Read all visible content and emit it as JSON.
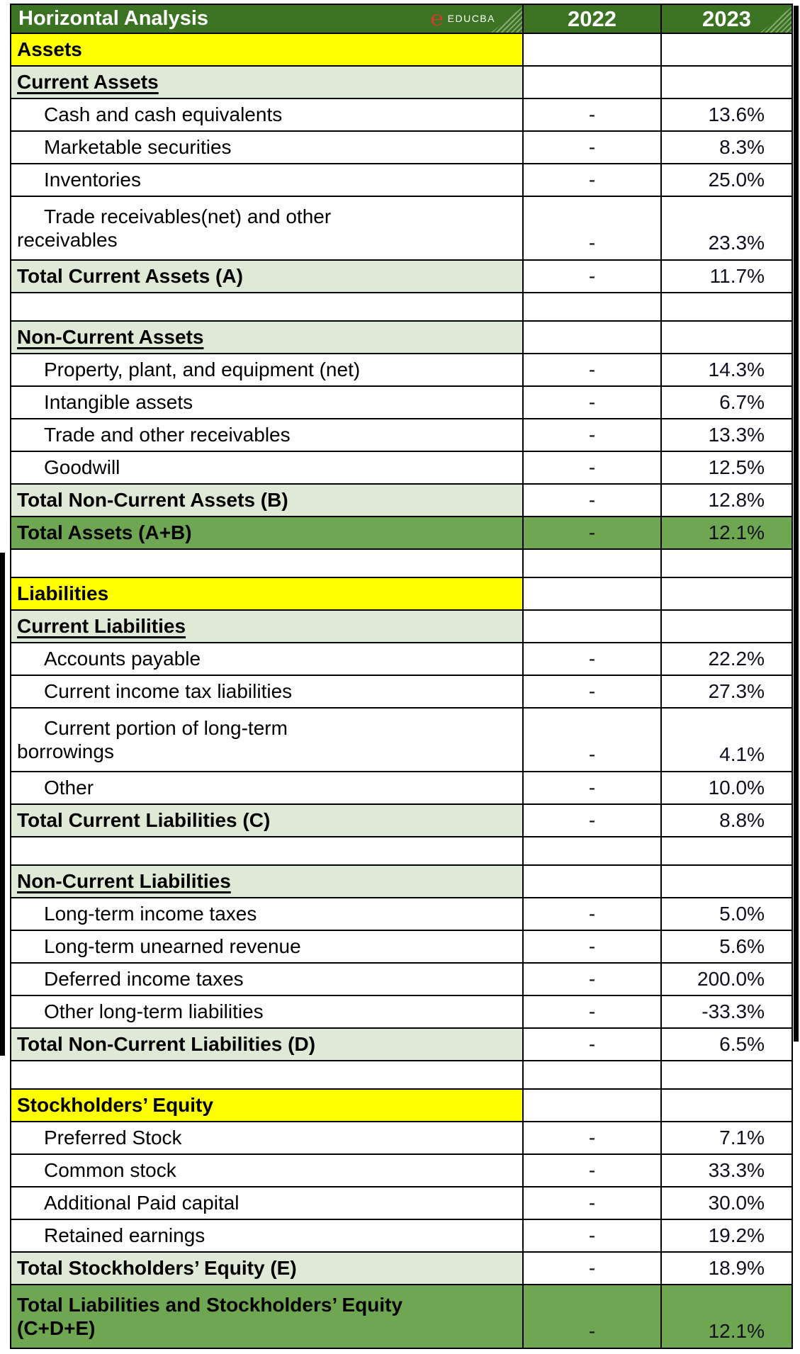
{
  "header": {
    "title": "Horizontal Analysis",
    "logo_text": "EDUCBA",
    "col_2022": "2022",
    "col_2023": "2023"
  },
  "colors": {
    "header_green": "#3b7322",
    "light_green": "#deead5",
    "mid_green": "#6fa651",
    "yellow": "#ffff00",
    "logo_red": "#e8332a"
  },
  "rows": [
    {
      "type": "section_yellow",
      "label": "Assets",
      "y2022": "",
      "y2023": ""
    },
    {
      "type": "section_green",
      "label": "Current Assets",
      "y2022": "",
      "y2023": ""
    },
    {
      "type": "item",
      "label": "Cash and cash equivalents",
      "y2022": "-",
      "y2023": "13.6%"
    },
    {
      "type": "item",
      "label": "Marketable securities",
      "y2022": "-",
      "y2023": "8.3%"
    },
    {
      "type": "item",
      "label": "Inventories",
      "y2022": "-",
      "y2023": "25.0%"
    },
    {
      "type": "item_wrap",
      "label": "Trade receivables(net) and other",
      "label2": "receivables",
      "y2022": "-",
      "y2023": "23.3%"
    },
    {
      "type": "total_light",
      "label": "Total Current Assets (A)",
      "y2022": "-",
      "y2023": "11.7%"
    },
    {
      "type": "spacer",
      "label": "",
      "y2022": "",
      "y2023": ""
    },
    {
      "type": "section_green",
      "label": "Non-Current Assets",
      "y2022": "",
      "y2023": ""
    },
    {
      "type": "item",
      "label": "Property, plant, and equipment (net)",
      "y2022": "-",
      "y2023": "14.3%"
    },
    {
      "type": "item",
      "label": "Intangible assets",
      "y2022": "-",
      "y2023": "6.7%"
    },
    {
      "type": "item",
      "label": "Trade and other receivables",
      "y2022": "-",
      "y2023": "13.3%"
    },
    {
      "type": "item",
      "label": "Goodwill",
      "y2022": "-",
      "y2023": "12.5%"
    },
    {
      "type": "total_light",
      "label": "Total Non-Current Assets (B)",
      "y2022": "-",
      "y2023": "12.8%"
    },
    {
      "type": "total_dark",
      "label": "Total Assets (A+B)",
      "y2022": "-",
      "y2023": "12.1%"
    },
    {
      "type": "spacer",
      "label": "",
      "y2022": "",
      "y2023": ""
    },
    {
      "type": "section_yellow",
      "label": "Liabilities",
      "y2022": "",
      "y2023": ""
    },
    {
      "type": "section_green",
      "label": "Current Liabilities",
      "y2022": "",
      "y2023": ""
    },
    {
      "type": "item",
      "label": "Accounts payable",
      "y2022": "-",
      "y2023": "22.2%"
    },
    {
      "type": "item",
      "label": "Current income tax liabilities",
      "y2022": "-",
      "y2023": "27.3%"
    },
    {
      "type": "item_wrap",
      "label": "Current portion of long-term",
      "label2": "borrowings",
      "y2022": "-",
      "y2023": "4.1%"
    },
    {
      "type": "item",
      "label": "Other",
      "y2022": "-",
      "y2023": "10.0%"
    },
    {
      "type": "total_light",
      "label": "Total Current Liabilities (C)",
      "y2022": "-",
      "y2023": "8.8%"
    },
    {
      "type": "spacer",
      "label": "",
      "y2022": "",
      "y2023": ""
    },
    {
      "type": "section_green",
      "label": "Non-Current Liabilities",
      "y2022": "",
      "y2023": ""
    },
    {
      "type": "item",
      "label": "Long-term income taxes",
      "y2022": "-",
      "y2023": "5.0%"
    },
    {
      "type": "item",
      "label": "Long-term unearned revenue",
      "y2022": "-",
      "y2023": "5.6%"
    },
    {
      "type": "item",
      "label": "Deferred income taxes",
      "y2022": "-",
      "y2023": "200.0%"
    },
    {
      "type": "item",
      "label": "Other long-term liabilities",
      "y2022": "-",
      "y2023": "-33.3%"
    },
    {
      "type": "total_light",
      "label": "Total Non-Current Liabilities (D)",
      "y2022": "-",
      "y2023": "6.5%"
    },
    {
      "type": "spacer",
      "label": "",
      "y2022": "",
      "y2023": ""
    },
    {
      "type": "section_yellow",
      "label": "Stockholders’ Equity",
      "y2022": "",
      "y2023": ""
    },
    {
      "type": "item",
      "label": "Preferred Stock",
      "y2022": "-",
      "y2023": "7.1%"
    },
    {
      "type": "item",
      "label": "Common stock",
      "y2022": "-",
      "y2023": "33.3%"
    },
    {
      "type": "item",
      "label": "Additional Paid capital",
      "y2022": "-",
      "y2023": "30.0%"
    },
    {
      "type": "item",
      "label": "Retained earnings",
      "y2022": "-",
      "y2023": "19.2%"
    },
    {
      "type": "total_light",
      "label": "Total Stockholders’ Equity (E)",
      "y2022": "-",
      "y2023": "18.9%"
    },
    {
      "type": "total_dark_tall",
      "label": "Total Liabilities and Stockholders’ Equity",
      "label2": "(C+D+E)",
      "y2022": "-",
      "y2023": "12.1%"
    }
  ]
}
